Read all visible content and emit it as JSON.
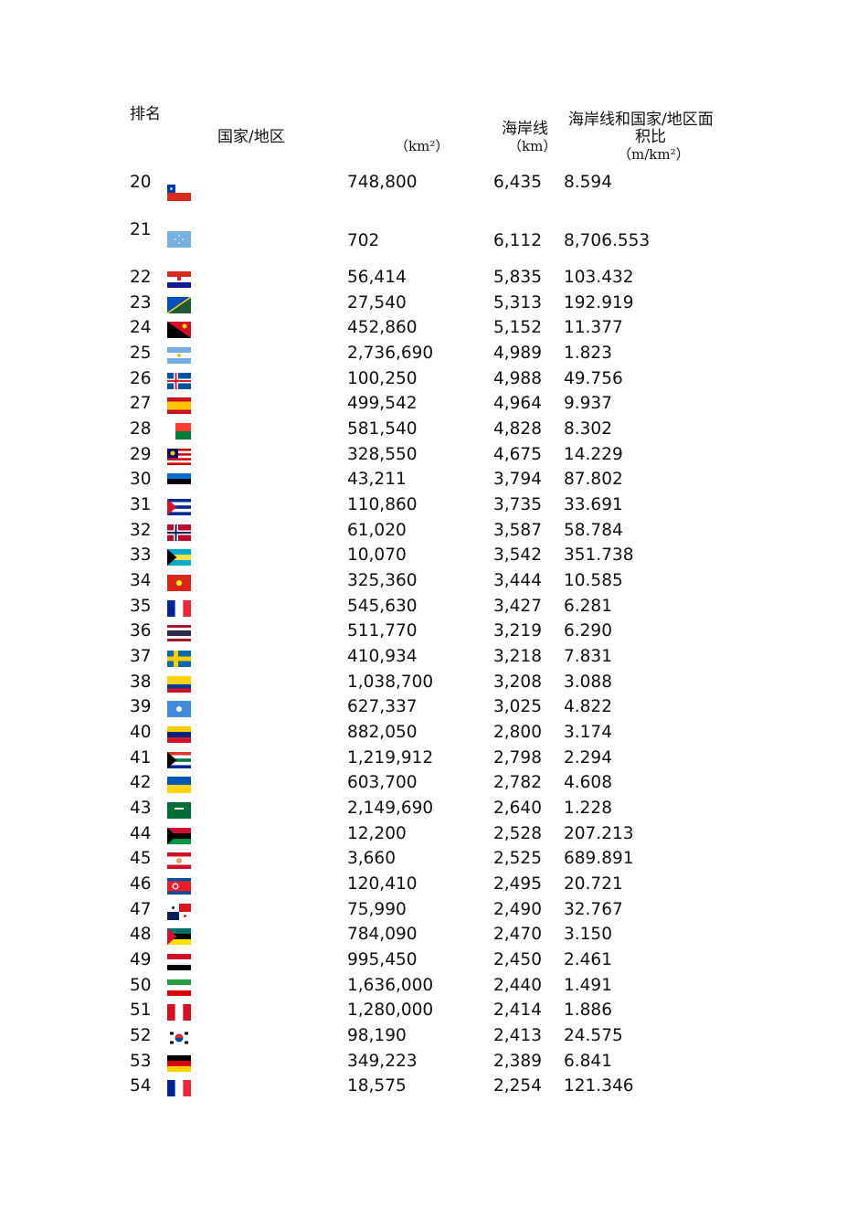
{
  "header": {
    "rank": "排名",
    "country": "国家/地区",
    "area_unit": "（km²）",
    "coastline": "海岸线",
    "coastline_unit": "（km）",
    "ratio_line1": "海岸线和国家/地区面",
    "ratio_line2": "积比",
    "ratio_unit": "（m/km²）"
  },
  "rows": [
    {
      "rank": "20",
      "area": "748,800",
      "coastline": "6,435",
      "ratio": "8.594",
      "flag": {
        "icon": "chile-flag-icon",
        "type": "chile"
      }
    },
    {
      "rank": "21",
      "area": "702",
      "coastline": "6,112",
      "ratio": "8,706.553",
      "flag": {
        "icon": "micronesia-flag-icon",
        "type": "plain",
        "colors": [
          "#75b2dd"
        ],
        "mark": "stars"
      }
    },
    {
      "rank": "22",
      "area": "56,414",
      "coastline": "5,835",
      "ratio": "103.432",
      "flag": {
        "icon": "croatia-flag-icon",
        "type": "h",
        "colors": [
          "#d52b1e",
          "#ffffff",
          "#171796"
        ],
        "mark": "shield"
      }
    },
    {
      "rank": "23",
      "area": "27,540",
      "coastline": "5,313",
      "ratio": "192.919",
      "flag": {
        "icon": "solomon-islands-flag-icon",
        "type": "diag",
        "colors": [
          "#0051ba",
          "#215b33",
          "#fcd116"
        ]
      }
    },
    {
      "rank": "24",
      "area": "452,860",
      "coastline": "5,152",
      "ratio": "11.377",
      "flag": {
        "icon": "papua-new-guinea-flag-icon",
        "type": "diag2",
        "colors": [
          "#ce1126",
          "#000000",
          "#fcd116"
        ]
      }
    },
    {
      "rank": "25",
      "area": "2,736,690",
      "coastline": "4,989",
      "ratio": "1.823",
      "flag": {
        "icon": "argentina-flag-icon",
        "type": "h",
        "colors": [
          "#74acdf",
          "#ffffff",
          "#74acdf"
        ],
        "mark": "sun"
      }
    },
    {
      "rank": "26",
      "area": "100,250",
      "coastline": "4,988",
      "ratio": "49.756",
      "flag": {
        "icon": "iceland-flag-icon",
        "type": "cross",
        "colors": [
          "#02529c",
          "#ffffff",
          "#dc1e35"
        ]
      }
    },
    {
      "rank": "27",
      "area": "499,542",
      "coastline": "4,964",
      "ratio": "9.937",
      "flag": {
        "icon": "spain-flag-icon",
        "type": "h",
        "colors": [
          "#c60b1e",
          "#ffc400",
          "#ffc400",
          "#c60b1e"
        ]
      }
    },
    {
      "rank": "28",
      "area": "581,540",
      "coastline": "4,828",
      "ratio": "8.302",
      "flag": {
        "icon": "madagascar-flag-icon",
        "type": "madagascar",
        "colors": [
          "#ffffff",
          "#fc3d32",
          "#007e3a"
        ]
      }
    },
    {
      "rank": "29",
      "area": "328,550",
      "coastline": "4,675",
      "ratio": "14.229",
      "flag": {
        "icon": "malaysia-flag-icon",
        "type": "canton",
        "colors": [
          "#cc0001",
          "#ffffff",
          "#010066"
        ]
      }
    },
    {
      "rank": "30",
      "area": "43,211",
      "coastline": "3,794",
      "ratio": "87.802",
      "flag": {
        "icon": "estonia-flag-icon",
        "type": "h",
        "colors": [
          "#0072ce",
          "#000000",
          "#ffffff"
        ]
      }
    },
    {
      "rank": "31",
      "area": "110,860",
      "coastline": "3,735",
      "ratio": "33.691",
      "flag": {
        "icon": "cuba-flag-icon",
        "type": "h",
        "colors": [
          "#002a8f",
          "#ffffff",
          "#002a8f",
          "#ffffff",
          "#002a8f"
        ],
        "tri": "#cf142b"
      }
    },
    {
      "rank": "32",
      "area": "61,020",
      "coastline": "3,587",
      "ratio": "58.784",
      "flag": {
        "icon": "norway-flag-icon",
        "type": "cross",
        "colors": [
          "#ba0c2f",
          "#ffffff",
          "#00205b"
        ]
      }
    },
    {
      "rank": "33",
      "area": "10,070",
      "coastline": "3,542",
      "ratio": "351.738",
      "flag": {
        "icon": "bahamas-flag-icon",
        "type": "h",
        "colors": [
          "#00abc9",
          "#fae042",
          "#00abc9"
        ],
        "tri": "#000000"
      }
    },
    {
      "rank": "34",
      "area": "325,360",
      "coastline": "3,444",
      "ratio": "10.585",
      "flag": {
        "icon": "vietnam-flag-icon",
        "type": "plain",
        "colors": [
          "#da251d"
        ],
        "mark": "star"
      }
    },
    {
      "rank": "35",
      "area": "545,630",
      "coastline": "3,427",
      "ratio": "6.281",
      "flag": {
        "icon": "france-flag-icon",
        "type": "v",
        "colors": [
          "#002395",
          "#ffffff",
          "#ed2939"
        ]
      }
    },
    {
      "rank": "36",
      "area": "511,770",
      "coastline": "3,219",
      "ratio": "6.290",
      "flag": {
        "icon": "thailand-flag-icon",
        "type": "h",
        "colors": [
          "#a51931",
          "#f4f5f8",
          "#2d2a4a",
          "#2d2a4a",
          "#f4f5f8",
          "#a51931"
        ]
      }
    },
    {
      "rank": "37",
      "area": "410,934",
      "coastline": "3,218",
      "ratio": "7.831",
      "flag": {
        "icon": "sweden-flag-icon",
        "type": "cross",
        "colors": [
          "#006aa7",
          "#fecc00",
          "#fecc00"
        ]
      }
    },
    {
      "rank": "38",
      "area": "1,038,700",
      "coastline": "3,208",
      "ratio": "3.088",
      "flag": {
        "icon": "colombia-flag-icon",
        "type": "h",
        "colors": [
          "#fcd116",
          "#fcd116",
          "#003893",
          "#ce1126"
        ]
      }
    },
    {
      "rank": "39",
      "area": "627,337",
      "coastline": "3,025",
      "ratio": "4.822",
      "flag": {
        "icon": "somalia-flag-icon",
        "type": "plain",
        "colors": [
          "#4189dd"
        ],
        "mark": "wstar"
      }
    },
    {
      "rank": "40",
      "area": "882,050",
      "coastline": "2,800",
      "ratio": "3.174",
      "flag": {
        "icon": "venezuela-flag-icon",
        "type": "h",
        "colors": [
          "#ffcc00",
          "#00247d",
          "#cf142b"
        ]
      }
    },
    {
      "rank": "41",
      "area": "1,219,912",
      "coastline": "2,798",
      "ratio": "2.294",
      "flag": {
        "icon": "south-africa-flag-icon",
        "type": "h",
        "colors": [
          "#de3831",
          "#ffffff",
          "#007a4d",
          "#ffffff",
          "#002395"
        ],
        "tri": "#000000"
      }
    },
    {
      "rank": "42",
      "area": "603,700",
      "coastline": "2,782",
      "ratio": "4.608",
      "flag": {
        "icon": "ukraine-flag-icon",
        "type": "h",
        "colors": [
          "#0057b7",
          "#ffd700"
        ]
      }
    },
    {
      "rank": "43",
      "area": "2,149,690",
      "coastline": "2,640",
      "ratio": "1.228",
      "flag": {
        "icon": "saudi-arabia-flag-icon",
        "type": "plain",
        "colors": [
          "#006c35"
        ],
        "mark": "script"
      }
    },
    {
      "rank": "44",
      "area": "12,200",
      "coastline": "2,528",
      "ratio": "207.213",
      "flag": {
        "icon": "vanuatu-flag-icon",
        "type": "h",
        "colors": [
          "#d21034",
          "#000000",
          "#009543"
        ],
        "tri": "#000000"
      }
    },
    {
      "rank": "45",
      "area": "3,660",
      "coastline": "2,525",
      "ratio": "689.891",
      "flag": {
        "icon": "french-polynesia-flag-icon",
        "type": "h",
        "colors": [
          "#ce1126",
          "#ffffff",
          "#ffffff",
          "#ce1126"
        ],
        "mark": "emblem"
      }
    },
    {
      "rank": "46",
      "area": "120,410",
      "coastline": "2,495",
      "ratio": "20.721",
      "flag": {
        "icon": "north-korea-flag-icon",
        "type": "h",
        "colors": [
          "#024fa2",
          "#ed1c27",
          "#ed1c27",
          "#ed1c27",
          "#024fa2"
        ],
        "mark": "redstar"
      }
    },
    {
      "rank": "47",
      "area": "75,990",
      "coastline": "2,490",
      "ratio": "32.767",
      "flag": {
        "icon": "panama-flag-icon",
        "type": "panama",
        "colors": [
          "#ffffff",
          "#da121a",
          "#072357"
        ]
      }
    },
    {
      "rank": "48",
      "area": "784,090",
      "coastline": "2,470",
      "ratio": "3.150",
      "flag": {
        "icon": "mozambique-flag-icon",
        "type": "h",
        "colors": [
          "#007168",
          "#000000",
          "#fce100"
        ],
        "tri": "#d21034"
      }
    },
    {
      "rank": "49",
      "area": "995,450",
      "coastline": "2,450",
      "ratio": "2.461",
      "flag": {
        "icon": "egypt-flag-icon",
        "type": "h",
        "colors": [
          "#ce1126",
          "#ffffff",
          "#000000"
        ]
      }
    },
    {
      "rank": "50",
      "area": "1,636,000",
      "coastline": "2,440",
      "ratio": "1.491",
      "flag": {
        "icon": "iran-flag-icon",
        "type": "h",
        "colors": [
          "#239f40",
          "#ffffff",
          "#da0000"
        ]
      }
    },
    {
      "rank": "51",
      "area": "1,280,000",
      "coastline": "2,414",
      "ratio": "1.886",
      "flag": {
        "icon": "peru-flag-icon",
        "type": "v",
        "colors": [
          "#d91023",
          "#ffffff",
          "#d91023"
        ]
      }
    },
    {
      "rank": "52",
      "area": "98,190",
      "coastline": "2,413",
      "ratio": "24.575",
      "flag": {
        "icon": "south-korea-flag-icon",
        "type": "korea",
        "colors": [
          "#ffffff",
          "#cd2e3a",
          "#0047a0"
        ]
      }
    },
    {
      "rank": "53",
      "area": "349,223",
      "coastline": "2,389",
      "ratio": "6.841",
      "flag": {
        "icon": "germany-flag-icon",
        "type": "h",
        "colors": [
          "#000000",
          "#dd0000",
          "#ffce00"
        ]
      }
    },
    {
      "rank": "54",
      "area": "18,575",
      "coastline": "2,254",
      "ratio": "121.346",
      "flag": {
        "icon": "france-flag-icon",
        "type": "v",
        "colors": [
          "#002395",
          "#ffffff",
          "#ed2939"
        ]
      }
    }
  ]
}
